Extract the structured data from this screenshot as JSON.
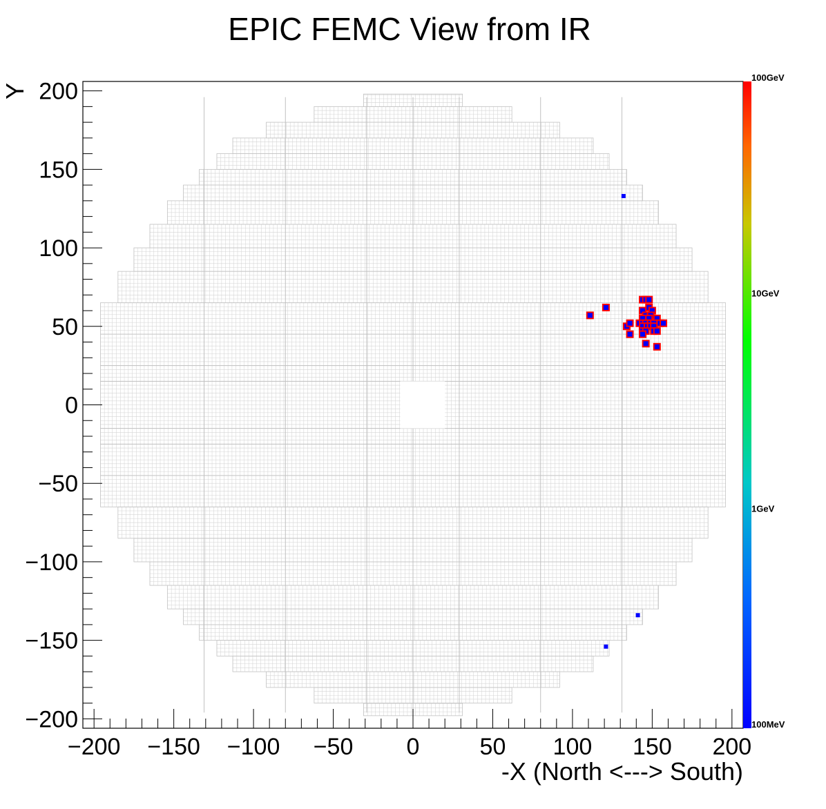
{
  "chart_data": {
    "type": "heatmap",
    "title": "EPIC FEMC View from IR",
    "xlabel": "-X (North <---> South)",
    "ylabel": "Y",
    "xlim": [
      -207,
      207
    ],
    "ylim": [
      -206,
      206
    ],
    "xticks": [
      -200,
      -150,
      -100,
      -50,
      0,
      50,
      100,
      150,
      200
    ],
    "yticks": [
      200,
      150,
      100,
      50,
      0,
      -50,
      -100,
      -150,
      -200
    ],
    "xtick_labels": [
      "−200",
      "−150",
      "−100",
      "−50",
      "0",
      "50",
      "100",
      "150",
      "200"
    ],
    "ytick_labels": [
      "200",
      "150",
      "100",
      "50",
      "0",
      "−50",
      "−100",
      "−150",
      "−200"
    ],
    "cell_size": 2.5,
    "detector_outline_rows": [
      {
        "y": [
          190,
          198
        ],
        "x": [
          -31,
          31
        ]
      },
      {
        "y": [
          180,
          190
        ],
        "x": [
          -62,
          62
        ]
      },
      {
        "y": [
          170,
          180
        ],
        "x": [
          -92,
          92
        ]
      },
      {
        "y": [
          160,
          170
        ],
        "x": [
          -113,
          113
        ]
      },
      {
        "y": [
          150,
          160
        ],
        "x": [
          -123,
          123
        ]
      },
      {
        "y": [
          140,
          150
        ],
        "x": [
          -134,
          134
        ]
      },
      {
        "y": [
          130,
          140
        ],
        "x": [
          -144,
          144
        ]
      },
      {
        "y": [
          115,
          130
        ],
        "x": [
          -154,
          154
        ]
      },
      {
        "y": [
          100,
          115
        ],
        "x": [
          -165,
          165
        ]
      },
      {
        "y": [
          85,
          100
        ],
        "x": [
          -175,
          175
        ]
      },
      {
        "y": [
          65,
          85
        ],
        "x": [
          -185,
          185
        ]
      },
      {
        "y": [
          45,
          65
        ],
        "x": [
          -196,
          196
        ]
      },
      {
        "y": [
          -45,
          45
        ],
        "x": [
          -196,
          196
        ]
      },
      {
        "y": [
          -65,
          -45
        ],
        "x": [
          -196,
          196
        ]
      },
      {
        "y": [
          -85,
          -65
        ],
        "x": [
          -185,
          185
        ]
      },
      {
        "y": [
          -100,
          -85
        ],
        "x": [
          -175,
          175
        ]
      },
      {
        "y": [
          -115,
          -100
        ],
        "x": [
          -165,
          165
        ]
      },
      {
        "y": [
          -130,
          -115
        ],
        "x": [
          -154,
          154
        ]
      },
      {
        "y": [
          -140,
          -130
        ],
        "x": [
          -144,
          144
        ]
      },
      {
        "y": [
          -150,
          -140
        ],
        "x": [
          -134,
          134
        ]
      },
      {
        "y": [
          -160,
          -150
        ],
        "x": [
          -123,
          123
        ]
      },
      {
        "y": [
          -170,
          -160
        ],
        "x": [
          -113,
          113
        ]
      },
      {
        "y": [
          -180,
          -170
        ],
        "x": [
          -92,
          92
        ]
      },
      {
        "y": [
          -190,
          -180
        ],
        "x": [
          -62,
          62
        ]
      },
      {
        "y": [
          -198,
          -190
        ],
        "x": [
          -31,
          31
        ]
      }
    ],
    "beam_hole": {
      "x": [
        -8,
        20
      ],
      "y": [
        -15,
        15
      ]
    },
    "hits": [
      {
        "x": 132,
        "y": 133,
        "energy": "low"
      },
      {
        "x": 111,
        "y": 57,
        "energy": "high"
      },
      {
        "x": 121,
        "y": 62,
        "energy": "high"
      },
      {
        "x": 134,
        "y": 50,
        "energy": "high"
      },
      {
        "x": 136,
        "y": 52,
        "energy": "high"
      },
      {
        "x": 136,
        "y": 45,
        "energy": "high"
      },
      {
        "x": 142,
        "y": 52,
        "energy": "high"
      },
      {
        "x": 144,
        "y": 67,
        "energy": "high"
      },
      {
        "x": 146,
        "y": 67,
        "energy": "high"
      },
      {
        "x": 148,
        "y": 67,
        "energy": "high"
      },
      {
        "x": 144,
        "y": 60,
        "energy": "high"
      },
      {
        "x": 148,
        "y": 62,
        "energy": "high"
      },
      {
        "x": 150,
        "y": 60,
        "energy": "high"
      },
      {
        "x": 146,
        "y": 57,
        "energy": "high"
      },
      {
        "x": 149,
        "y": 57,
        "energy": "high"
      },
      {
        "x": 144,
        "y": 55,
        "energy": "high"
      },
      {
        "x": 148,
        "y": 55,
        "energy": "high"
      },
      {
        "x": 153,
        "y": 55,
        "energy": "high"
      },
      {
        "x": 144,
        "y": 52,
        "energy": "high"
      },
      {
        "x": 146,
        "y": 52,
        "energy": "high"
      },
      {
        "x": 149,
        "y": 52,
        "energy": "high"
      },
      {
        "x": 151,
        "y": 52,
        "energy": "high"
      },
      {
        "x": 155,
        "y": 52,
        "energy": "high"
      },
      {
        "x": 157,
        "y": 52,
        "energy": "high"
      },
      {
        "x": 144,
        "y": 50,
        "energy": "high"
      },
      {
        "x": 147,
        "y": 50,
        "energy": "high"
      },
      {
        "x": 149,
        "y": 50,
        "energy": "high"
      },
      {
        "x": 151,
        "y": 50,
        "energy": "high"
      },
      {
        "x": 144,
        "y": 47,
        "energy": "high"
      },
      {
        "x": 146,
        "y": 47,
        "energy": "high"
      },
      {
        "x": 151,
        "y": 47,
        "energy": "high"
      },
      {
        "x": 153,
        "y": 47,
        "energy": "high"
      },
      {
        "x": 144,
        "y": 45,
        "energy": "high"
      },
      {
        "x": 146,
        "y": 39,
        "energy": "high"
      },
      {
        "x": 153,
        "y": 37,
        "energy": "high"
      },
      {
        "x": 141,
        "y": -134,
        "energy": "low"
      },
      {
        "x": 121,
        "y": -154,
        "energy": "low"
      }
    ],
    "colorbar": {
      "scale": "log",
      "range_gev": [
        0.1,
        100
      ],
      "labels": [
        {
          "text": "100GeV",
          "value_gev": 100
        },
        {
          "text": "10GeV",
          "value_gev": 10
        },
        {
          "text": "1GeV",
          "value_gev": 1
        },
        {
          "text": "100MeV",
          "value_gev": 0.1
        }
      ],
      "colors": [
        "#0000ff",
        "#0066ff",
        "#00c8c8",
        "#00ff00",
        "#c8c800",
        "#ff6600",
        "#ff0000"
      ]
    },
    "colors": {
      "grid_line": "#d4d4d4",
      "hit_border": "#ff0000",
      "hit_fill": "#0000ff"
    }
  }
}
